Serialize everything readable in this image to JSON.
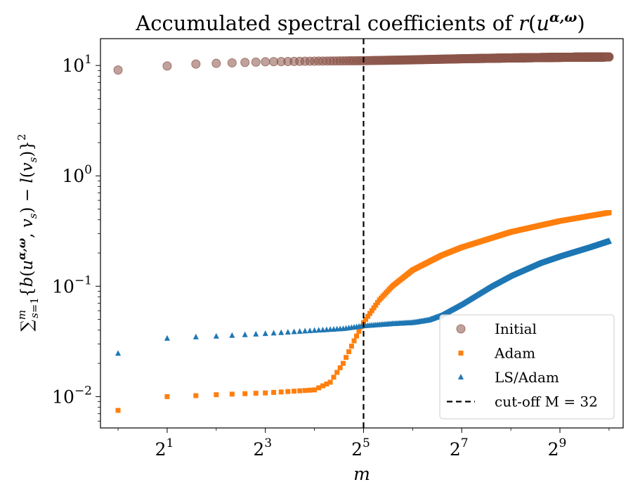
{
  "chart_data": {
    "type": "scatter",
    "title": "Accumulated spectral coefficients of r(u^{α,ω})",
    "xlabel": "m",
    "ylabel": "∑_{s=1}^{m} {b(u^{α,ω}, v_s) − l(v_s)}^2",
    "xscale": "log2",
    "yscale": "log10",
    "xlim": [
      0.78,
      1250
    ],
    "ylim": [
      0.0052,
      17.5
    ],
    "x_ticks": [
      {
        "value": 2,
        "base": "2",
        "exp": "1"
      },
      {
        "value": 8,
        "base": "2",
        "exp": "3"
      },
      {
        "value": 32,
        "base": "2",
        "exp": "5"
      },
      {
        "value": 128,
        "base": "2",
        "exp": "7"
      },
      {
        "value": 512,
        "base": "2",
        "exp": "9"
      }
    ],
    "y_ticks": [
      {
        "value": 0.01,
        "base": "10",
        "exp": "−2"
      },
      {
        "value": 0.1,
        "base": "10",
        "exp": "−1"
      },
      {
        "value": 1,
        "base": "10",
        "exp": "0"
      },
      {
        "value": 10,
        "base": "10",
        "exp": "1"
      }
    ],
    "cutoff": {
      "x": 32,
      "label": "cut-off M = 32"
    },
    "m_max": 1024,
    "series": [
      {
        "name": "Initial",
        "marker": "circle",
        "color": "#8c564b",
        "anchors": [
          [
            1,
            9.1
          ],
          [
            2,
            9.9
          ],
          [
            3,
            10.3
          ],
          [
            4,
            10.45
          ],
          [
            6,
            10.65
          ],
          [
            8,
            10.8
          ],
          [
            16,
            10.95
          ],
          [
            32,
            11.05
          ],
          [
            64,
            11.25
          ],
          [
            128,
            11.5
          ],
          [
            256,
            11.7
          ],
          [
            512,
            11.85
          ],
          [
            1024,
            11.95
          ]
        ]
      },
      {
        "name": "Adam",
        "marker": "square",
        "color": "#ff7f0e",
        "anchors": [
          [
            1,
            0.0075
          ],
          [
            2,
            0.01
          ],
          [
            3,
            0.0102
          ],
          [
            4,
            0.0104
          ],
          [
            8,
            0.0108
          ],
          [
            12,
            0.0112
          ],
          [
            16,
            0.0115
          ],
          [
            20,
            0.0135
          ],
          [
            24,
            0.02
          ],
          [
            28,
            0.032
          ],
          [
            32,
            0.047
          ],
          [
            40,
            0.075
          ],
          [
            48,
            0.1
          ],
          [
            64,
            0.14
          ],
          [
            96,
            0.19
          ],
          [
            128,
            0.225
          ],
          [
            256,
            0.31
          ],
          [
            512,
            0.39
          ],
          [
            1024,
            0.465
          ]
        ]
      },
      {
        "name": "LS/Adam",
        "marker": "triangle",
        "color": "#1f77b4",
        "anchors": [
          [
            1,
            0.0245
          ],
          [
            2,
            0.0335
          ],
          [
            3,
            0.0345
          ],
          [
            4,
            0.035
          ],
          [
            8,
            0.037
          ],
          [
            16,
            0.0395
          ],
          [
            24,
            0.041
          ],
          [
            32,
            0.0435
          ],
          [
            48,
            0.0455
          ],
          [
            64,
            0.0465
          ],
          [
            80,
            0.049
          ],
          [
            96,
            0.054
          ],
          [
            128,
            0.068
          ],
          [
            192,
            0.098
          ],
          [
            256,
            0.123
          ],
          [
            384,
            0.16
          ],
          [
            512,
            0.185
          ],
          [
            768,
            0.222
          ],
          [
            1024,
            0.255
          ]
        ]
      }
    ],
    "legend": {
      "position": "lower-right",
      "entries": [
        "Initial",
        "Adam",
        "LS/Adam",
        "cut-off M = 32"
      ]
    }
  }
}
